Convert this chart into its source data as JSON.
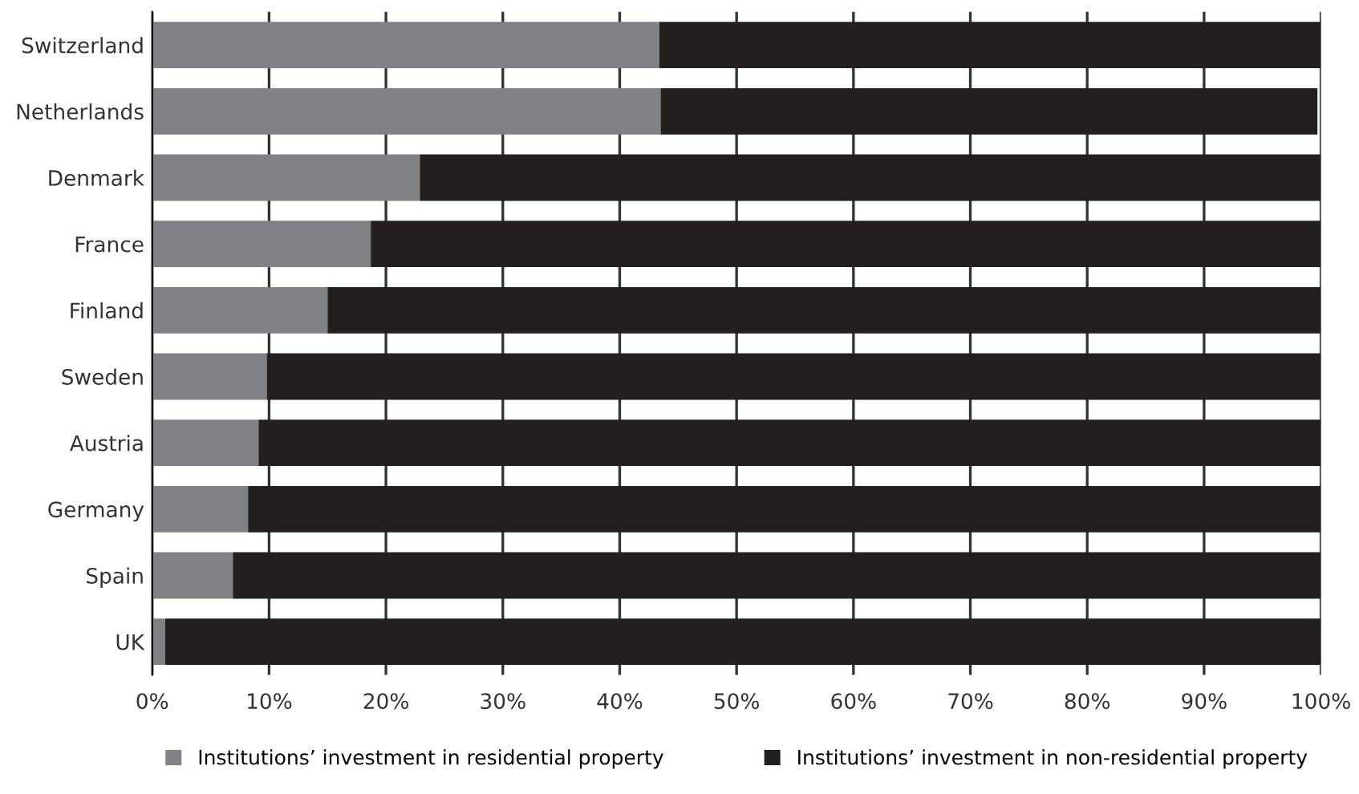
{
  "chart_data": {
    "type": "bar",
    "orientation": "horizontal",
    "stacked": true,
    "categories": [
      "Switzerland",
      "Netherlands",
      "Denmark",
      "France",
      "Finland",
      "Sweden",
      "Austria",
      "Germany",
      "Spain",
      "UK"
    ],
    "series": [
      {
        "name": "Institutions’ investment in residential property",
        "color": "#808184",
        "values": [
          43.4,
          43.5,
          22.9,
          18.7,
          15.0,
          9.8,
          9.1,
          8.2,
          6.9,
          1.1
        ]
      },
      {
        "name": "Institutions’ investment in non-residential property",
        "color": "#231f20",
        "values": [
          56.6,
          56.2,
          77.1,
          81.3,
          85.0,
          90.2,
          90.9,
          91.8,
          93.1,
          98.9
        ]
      }
    ],
    "xlim": [
      0,
      100
    ],
    "xticks": [
      {
        "value": 0,
        "label": "0%"
      },
      {
        "value": 10,
        "label": "10%"
      },
      {
        "value": 20,
        "label": "20%"
      },
      {
        "value": 30,
        "label": "30%"
      },
      {
        "value": 40,
        "label": "40%"
      },
      {
        "value": 50,
        "label": "50%"
      },
      {
        "value": 60,
        "label": "60%"
      },
      {
        "value": 70,
        "label": "70%"
      },
      {
        "value": 80,
        "label": "80%"
      },
      {
        "value": 90,
        "label": "90%"
      },
      {
        "value": 100,
        "label": "100%"
      }
    ],
    "grid": "x",
    "legend": "bottom"
  }
}
